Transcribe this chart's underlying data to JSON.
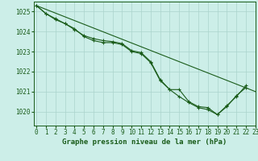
{
  "title": "Graphe pression niveau de la mer (hPa)",
  "background_color": "#cceee8",
  "grid_color": "#aad4cc",
  "line_color": "#1a5c1a",
  "xlim": [
    -0.3,
    23
  ],
  "ylim": [
    1019.3,
    1025.5
  ],
  "yticks": [
    1020,
    1021,
    1022,
    1023,
    1024,
    1025
  ],
  "xticks": [
    0,
    1,
    2,
    3,
    4,
    5,
    6,
    7,
    8,
    9,
    10,
    11,
    12,
    13,
    14,
    15,
    16,
    17,
    18,
    19,
    20,
    21,
    22,
    23
  ],
  "series": [
    {
      "x": [
        0,
        1,
        2,
        3,
        4,
        5,
        6,
        7,
        8,
        9,
        10,
        11,
        12,
        13,
        14,
        15,
        16,
        17,
        18,
        19,
        20,
        21,
        22
      ],
      "y": [
        1025.3,
        1024.9,
        1024.6,
        1024.4,
        1024.15,
        1023.75,
        1023.55,
        1023.45,
        1023.45,
        1023.35,
        1023.0,
        1022.9,
        1022.45,
        1021.55,
        1021.1,
        1021.1,
        1020.5,
        1020.25,
        1020.2,
        1019.85,
        1020.3,
        1020.75,
        1021.3
      ]
    },
    {
      "x": [
        0,
        1,
        2,
        3,
        4,
        5,
        6,
        7,
        8,
        9,
        10,
        11,
        12,
        13,
        14,
        15,
        16,
        17,
        18,
        19,
        20,
        21,
        22
      ],
      "y": [
        1025.3,
        1024.9,
        1024.65,
        1024.4,
        1024.1,
        1023.8,
        1023.65,
        1023.55,
        1023.5,
        1023.4,
        1023.05,
        1022.95,
        1022.5,
        1021.6,
        1021.1,
        1020.75,
        1020.45,
        1020.2,
        1020.1,
        1019.85,
        1020.25,
        1020.8,
        1021.2
      ]
    },
    {
      "x": [
        0,
        23
      ],
      "y": [
        1025.3,
        1021.0
      ]
    }
  ],
  "title_fontsize": 6.5,
  "tick_fontsize": 5.5
}
